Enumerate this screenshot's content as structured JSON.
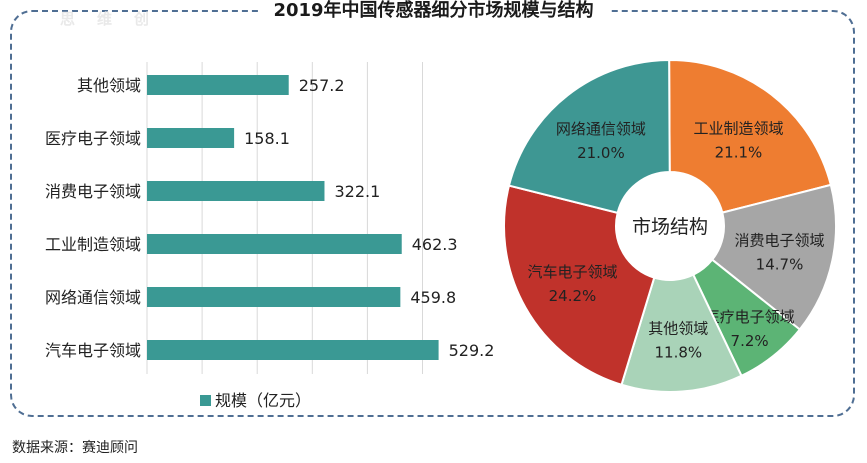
{
  "title": "2019年中国传感器细分市场规模与结构",
  "source": "数据来源：赛迪顾问",
  "watermark": "思维创",
  "chart_data": [
    {
      "type": "bar",
      "orientation": "horizontal",
      "categories": [
        "其他领域",
        "医疗电子领域",
        "消费电子领域",
        "工业制造领域",
        "网络通信领域",
        "汽车电子领域"
      ],
      "series": [
        {
          "name": "规模（亿元）",
          "values": [
            257.2,
            158.1,
            322.1,
            462.3,
            459.8,
            529.2
          ]
        }
      ],
      "color": "#3a9994",
      "xlim": [
        0,
        600
      ],
      "grid": true,
      "legend": "bottom"
    },
    {
      "type": "pie",
      "donut": true,
      "center_label": "市场结构",
      "slices": [
        {
          "label": "工业制造领域",
          "value": 21.1,
          "value_text": "21.1%",
          "color": "#ee7d31"
        },
        {
          "label": "消费电子领域",
          "value": 14.7,
          "value_text": "14.7%",
          "color": "#a6a6a6"
        },
        {
          "label": "医疗电子领域",
          "value": 7.2,
          "value_text": "7.2%",
          "color": "#5cb475"
        },
        {
          "label": "其他领域",
          "value": 11.8,
          "value_text": "11.8%",
          "color": "#a9d3b8"
        },
        {
          "label": "汽车电子领域",
          "value": 24.2,
          "value_text": "24.2%",
          "color": "#c0322b"
        },
        {
          "label": "网络通信领域",
          "value": 21.0,
          "value_text": "21.0%",
          "color": "#3e9793"
        }
      ]
    }
  ]
}
